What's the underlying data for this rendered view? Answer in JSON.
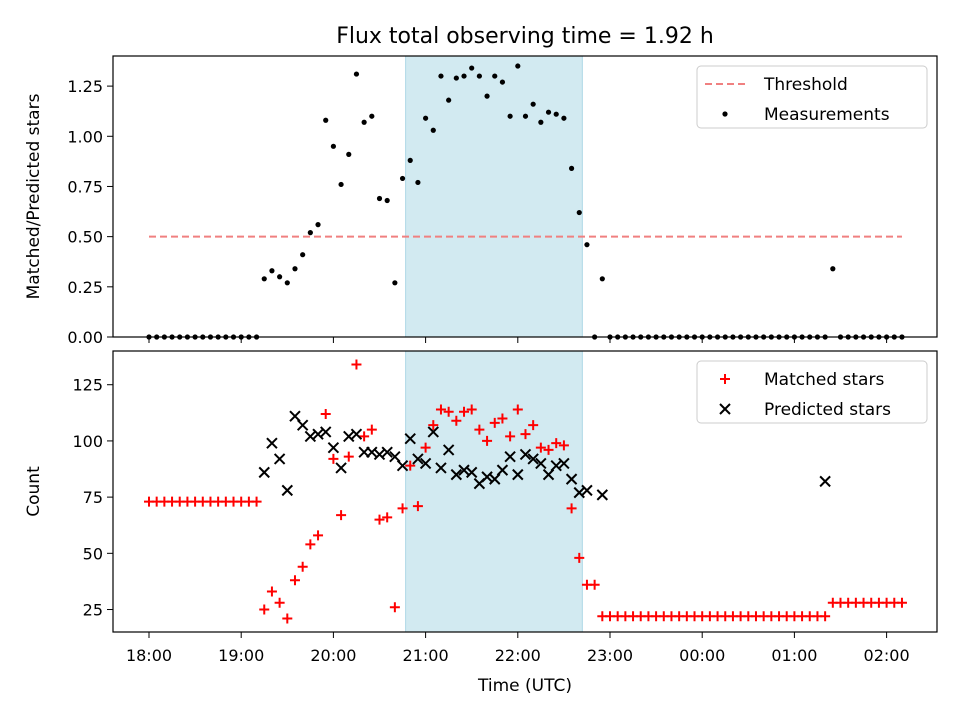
{
  "title": "Flux total observing time = 1.92 h",
  "xlabel": "Time (UTC)",
  "x_tick_labels": [
    "18:00",
    "19:00",
    "20:00",
    "21:00",
    "22:00",
    "23:00",
    "00:00",
    "01:00",
    "02:00"
  ],
  "colors": {
    "threshold": "#f08080",
    "measurements": "#000000",
    "matched": "#ff0000",
    "predicted": "#000000",
    "shade": "#add8e6"
  },
  "chart_data": [
    {
      "type": "scatter",
      "ylabel": "Matched/Predicted stars",
      "ylim": [
        0,
        1.4
      ],
      "y_tick_labels": [
        "0.00",
        "0.25",
        "0.50",
        "0.75",
        "1.00",
        "1.25"
      ],
      "x_unit": "UTC time",
      "shaded_interval": [
        "20:47",
        "22:42"
      ],
      "legend": {
        "placement": "top-right",
        "entries": [
          "Threshold",
          "Measurements"
        ]
      },
      "series": [
        {
          "name": "Threshold",
          "style": "dashed-line",
          "x": [
            "18:00",
            "02:10"
          ],
          "y": [
            0.5,
            0.5
          ]
        },
        {
          "name": "Measurements",
          "style": "dots",
          "x": [
            "18:00",
            "18:05",
            "18:10",
            "18:15",
            "18:20",
            "18:25",
            "18:30",
            "18:35",
            "18:40",
            "18:45",
            "18:50",
            "18:55",
            "19:00",
            "19:05",
            "19:10",
            "19:15",
            "19:20",
            "19:25",
            "19:30",
            "19:35",
            "19:40",
            "19:45",
            "19:50",
            "19:55",
            "20:00",
            "20:05",
            "20:10",
            "20:15",
            "20:20",
            "20:25",
            "20:30",
            "20:35",
            "20:40",
            "20:45",
            "20:50",
            "20:55",
            "21:00",
            "21:05",
            "21:10",
            "21:15",
            "21:20",
            "21:25",
            "21:30",
            "21:35",
            "21:40",
            "21:45",
            "21:50",
            "21:55",
            "22:00",
            "22:05",
            "22:10",
            "22:15",
            "22:20",
            "22:25",
            "22:30",
            "22:35",
            "22:40",
            "22:45",
            "22:50",
            "22:55",
            "23:00",
            "23:05",
            "23:10",
            "23:15",
            "23:20",
            "23:25",
            "23:30",
            "23:35",
            "23:40",
            "23:45",
            "23:50",
            "23:55",
            "00:00",
            "00:05",
            "00:10",
            "00:15",
            "00:20",
            "00:25",
            "00:30",
            "00:35",
            "00:40",
            "00:45",
            "00:50",
            "00:55",
            "01:00",
            "01:05",
            "01:10",
            "01:15",
            "01:20",
            "01:25",
            "01:30",
            "01:35",
            "01:40",
            "01:45",
            "01:50",
            "01:55",
            "02:00",
            "02:05",
            "02:10"
          ],
          "y": [
            0,
            0,
            0,
            0,
            0,
            0,
            0,
            0,
            0,
            0,
            0,
            0,
            0,
            0,
            0,
            0.29,
            0.33,
            0.3,
            0.27,
            0.34,
            0.41,
            0.52,
            0.56,
            1.08,
            0.95,
            0.76,
            0.91,
            1.31,
            1.07,
            1.1,
            0.69,
            0.68,
            0.27,
            0.79,
            0.88,
            0.77,
            1.09,
            1.03,
            1.3,
            1.18,
            1.29,
            1.3,
            1.34,
            1.3,
            1.2,
            1.3,
            1.27,
            1.1,
            1.35,
            1.1,
            1.16,
            1.07,
            1.12,
            1.11,
            1.09,
            0.84,
            0.62,
            0.46,
            0,
            0.29,
            0,
            0,
            0,
            0,
            0,
            0,
            0,
            0,
            0,
            0,
            0,
            0,
            0,
            0,
            0,
            0,
            0,
            0,
            0,
            0,
            0,
            0,
            0,
            0,
            0,
            0,
            0,
            0,
            0,
            0.34,
            0,
            0,
            0,
            0,
            0,
            0,
            0,
            0,
            0
          ]
        }
      ]
    },
    {
      "type": "scatter",
      "ylabel": "Count",
      "ylim": [
        15,
        140
      ],
      "y_tick_labels": [
        "25",
        "50",
        "75",
        "100",
        "125"
      ],
      "x_unit": "UTC time",
      "shaded_interval": [
        "20:47",
        "22:42"
      ],
      "legend": {
        "placement": "top-right",
        "entries": [
          "Matched stars",
          "Predicted stars"
        ]
      },
      "series": [
        {
          "name": "Matched stars",
          "marker": "+",
          "x": [
            "18:00",
            "18:05",
            "18:10",
            "18:15",
            "18:20",
            "18:25",
            "18:30",
            "18:35",
            "18:40",
            "18:45",
            "18:50",
            "18:55",
            "19:00",
            "19:05",
            "19:10",
            "19:15",
            "19:20",
            "19:25",
            "19:30",
            "19:35",
            "19:40",
            "19:45",
            "19:50",
            "19:55",
            "20:00",
            "20:05",
            "20:10",
            "20:15",
            "20:20",
            "20:25",
            "20:30",
            "20:35",
            "20:40",
            "20:45",
            "20:50",
            "20:55",
            "21:00",
            "21:05",
            "21:10",
            "21:15",
            "21:20",
            "21:25",
            "21:30",
            "21:35",
            "21:40",
            "21:45",
            "21:50",
            "21:55",
            "22:00",
            "22:05",
            "22:10",
            "22:15",
            "22:20",
            "22:25",
            "22:30",
            "22:35",
            "22:40",
            "22:45",
            "22:50",
            "22:55",
            "23:00",
            "23:05",
            "23:10",
            "23:15",
            "23:20",
            "23:25",
            "23:30",
            "23:35",
            "23:40",
            "23:45",
            "23:50",
            "23:55",
            "00:00",
            "00:05",
            "00:10",
            "00:15",
            "00:20",
            "00:25",
            "00:30",
            "00:35",
            "00:40",
            "00:45",
            "00:50",
            "00:55",
            "01:00",
            "01:05",
            "01:10",
            "01:15",
            "01:20",
            "01:25",
            "01:30",
            "01:35",
            "01:40",
            "01:45",
            "01:50",
            "01:55",
            "02:00",
            "02:05",
            "02:10"
          ],
          "y": [
            73,
            73,
            73,
            73,
            73,
            73,
            73,
            73,
            73,
            73,
            73,
            73,
            73,
            73,
            73,
            25,
            33,
            28,
            21,
            38,
            44,
            54,
            58,
            112,
            92,
            67,
            93,
            134,
            102,
            105,
            65,
            66,
            26,
            70,
            89,
            71,
            97,
            107,
            114,
            113,
            109,
            113,
            114,
            105,
            100,
            108,
            110,
            102,
            114,
            103,
            107,
            97,
            96,
            99,
            98,
            70,
            48,
            36,
            36,
            22,
            22,
            22,
            22,
            22,
            22,
            22,
            22,
            22,
            22,
            22,
            22,
            22,
            22,
            22,
            22,
            22,
            22,
            22,
            22,
            22,
            22,
            22,
            22,
            22,
            22,
            22,
            22,
            22,
            22,
            28,
            28,
            28,
            28,
            28,
            28,
            28,
            28,
            28,
            28
          ]
        },
        {
          "name": "Predicted stars",
          "marker": "x",
          "x": [
            "19:15",
            "19:20",
            "19:25",
            "19:30",
            "19:35",
            "19:40",
            "19:45",
            "19:50",
            "19:55",
            "20:00",
            "20:05",
            "20:10",
            "20:15",
            "20:20",
            "20:25",
            "20:30",
            "20:35",
            "20:40",
            "20:45",
            "20:50",
            "20:55",
            "21:00",
            "21:05",
            "21:10",
            "21:15",
            "21:20",
            "21:25",
            "21:30",
            "21:35",
            "21:40",
            "21:45",
            "21:50",
            "21:55",
            "22:00",
            "22:05",
            "22:10",
            "22:15",
            "22:20",
            "22:25",
            "22:30",
            "22:35",
            "22:40",
            "22:45",
            "22:55",
            "01:20"
          ],
          "y": [
            86,
            99,
            92,
            78,
            111,
            107,
            102,
            103,
            104,
            97,
            88,
            102,
            103,
            95,
            95,
            94,
            95,
            93,
            89,
            101,
            92,
            90,
            104,
            88,
            96,
            85,
            87,
            86,
            81,
            84,
            83,
            87,
            93,
            85,
            94,
            92,
            90,
            85,
            89,
            90,
            83,
            77,
            78,
            76,
            82
          ]
        }
      ]
    }
  ]
}
